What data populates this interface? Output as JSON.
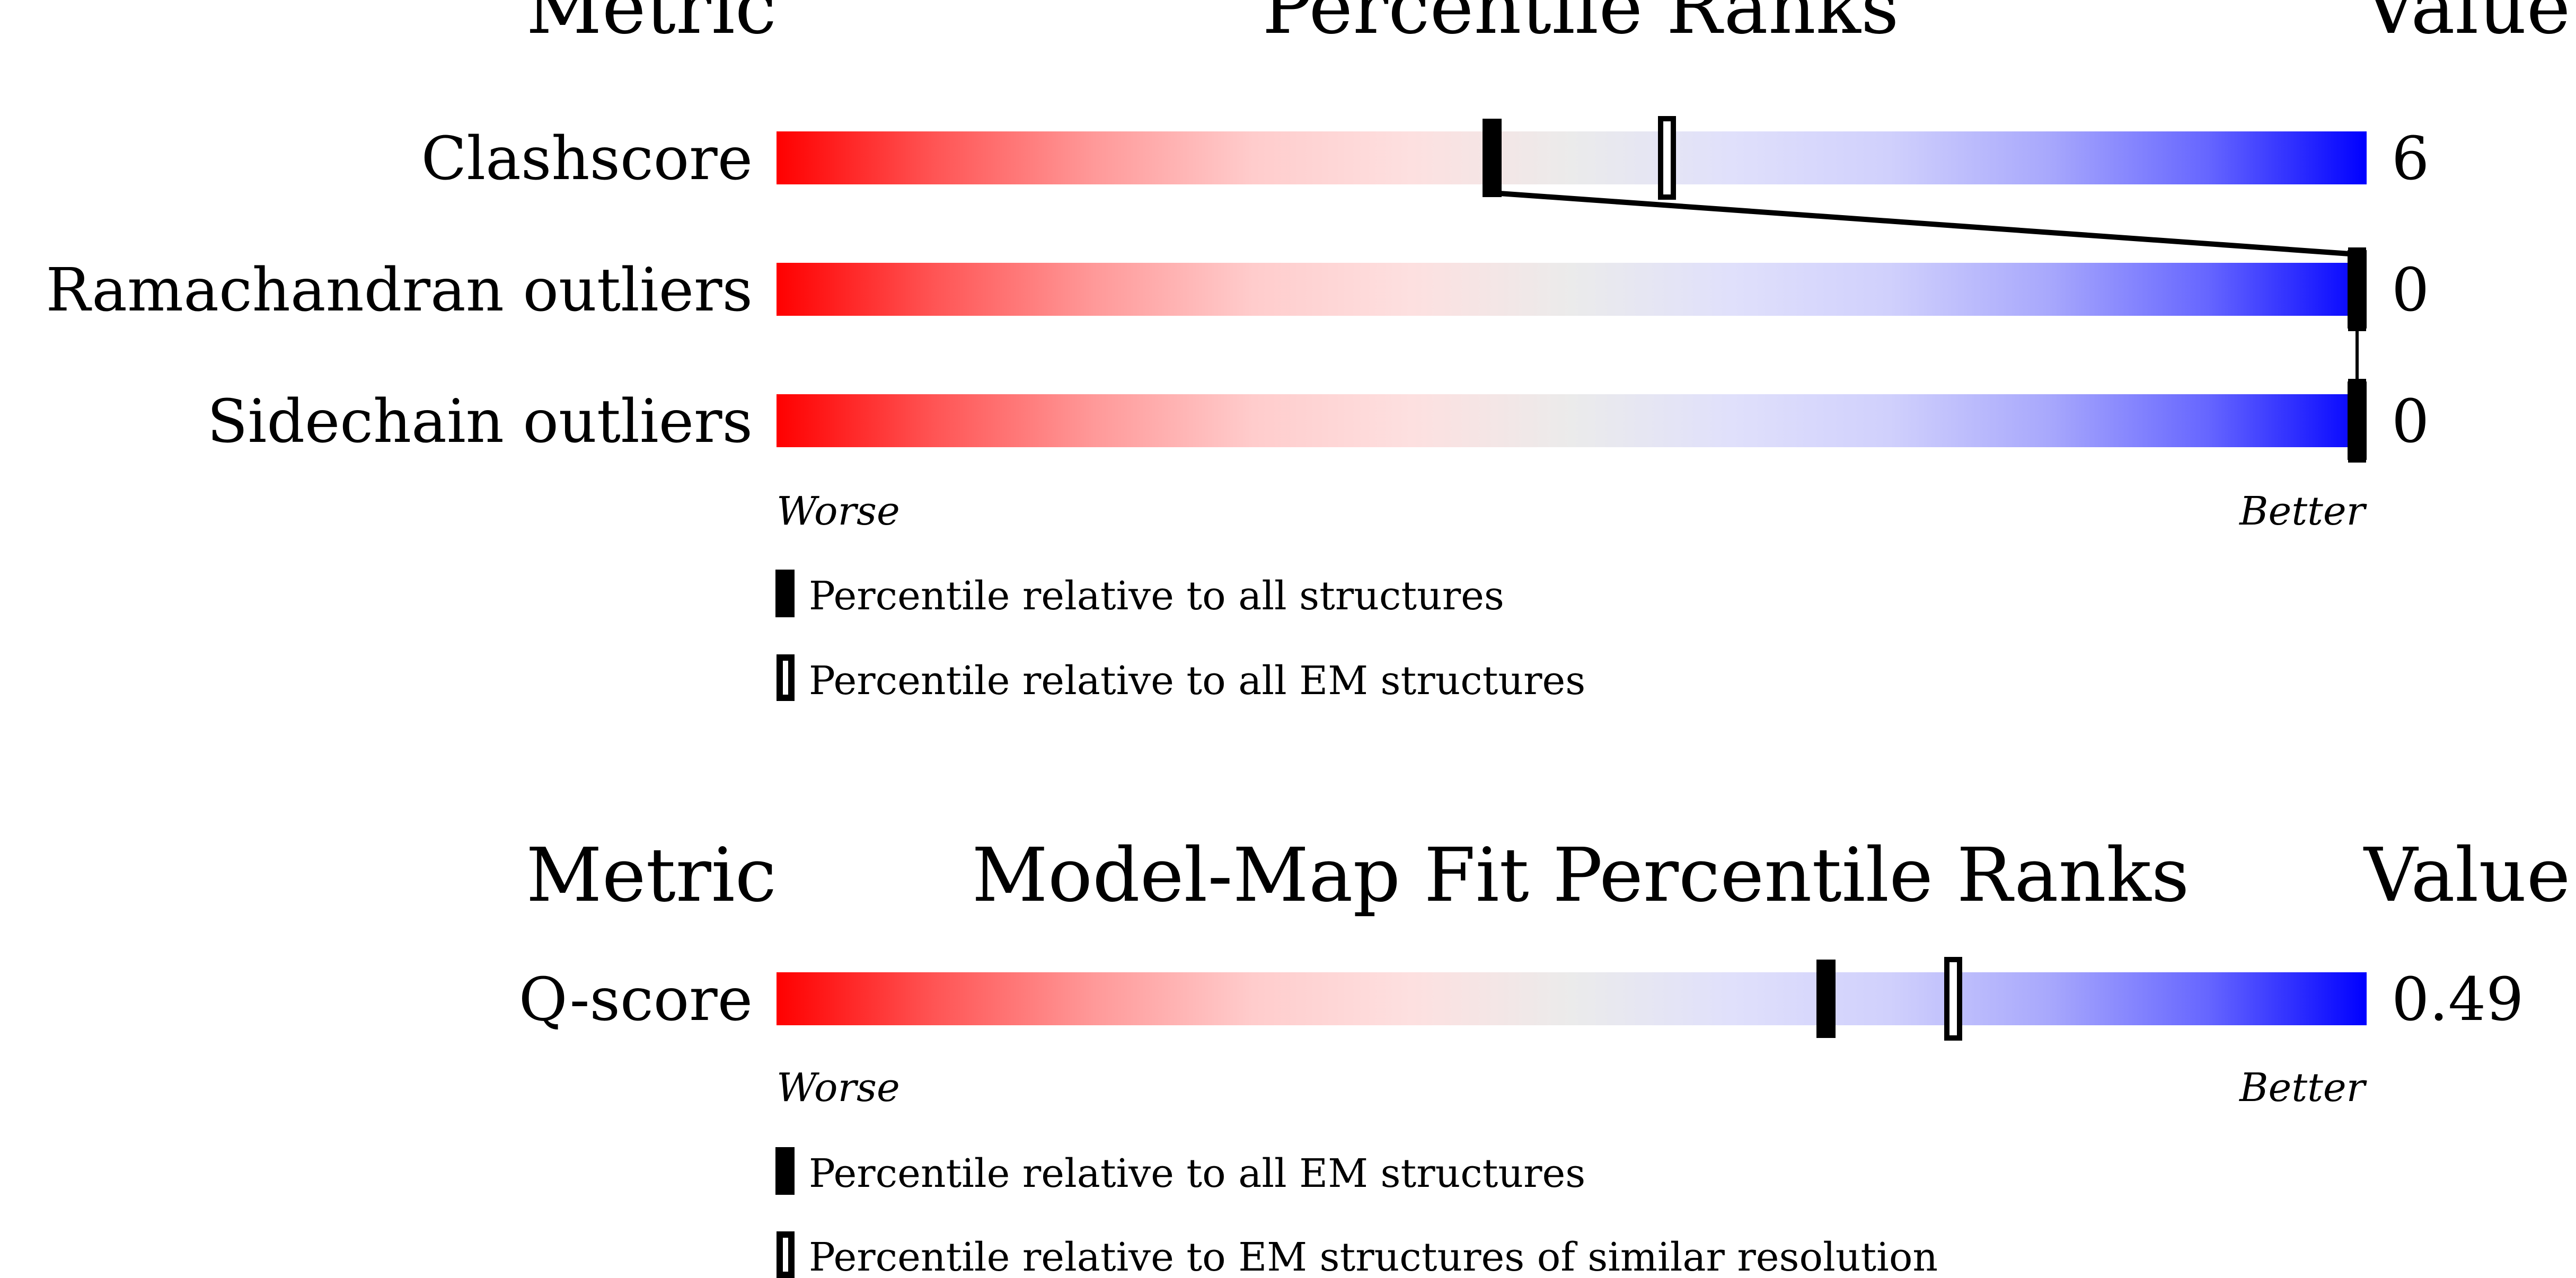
{
  "chart_data": [
    {
      "type": "bar",
      "header": {
        "metric": "Metric",
        "title": "Percentile Ranks",
        "value": "Value"
      },
      "metrics": [
        {
          "name": "Clashscore",
          "value": "6",
          "percentile_all": 45,
          "percentile_em": 56
        },
        {
          "name": "Ramachandran outliers",
          "value": "0",
          "percentile_all": 100,
          "percentile_em": 100
        },
        {
          "name": "Sidechain outliers",
          "value": "0",
          "percentile_all": 100,
          "percentile_em": 100
        }
      ],
      "scale": {
        "worse": "Worse",
        "better": "Better",
        "xlim": [
          0,
          100
        ]
      },
      "legend": {
        "filled": "Percentile relative to all structures",
        "open": "Percentile relative to all EM structures"
      }
    },
    {
      "type": "bar",
      "header": {
        "metric": "Metric",
        "title": "Model-Map Fit Percentile Ranks",
        "value": "Value"
      },
      "metrics": [
        {
          "name": "Q-score",
          "value": "0.49",
          "percentile_all": 66,
          "percentile_em": 74
        }
      ],
      "scale": {
        "worse": "Worse",
        "better": "Better",
        "xlim": [
          0,
          100
        ]
      },
      "legend": {
        "filled": "Percentile relative to all EM structures",
        "open": "Percentile relative to EM structures of similar resolution"
      }
    }
  ],
  "colors": {
    "worse": "#ff0000",
    "mid": "#ebebeb",
    "better": "#0000ff",
    "marker": "#000000"
  }
}
